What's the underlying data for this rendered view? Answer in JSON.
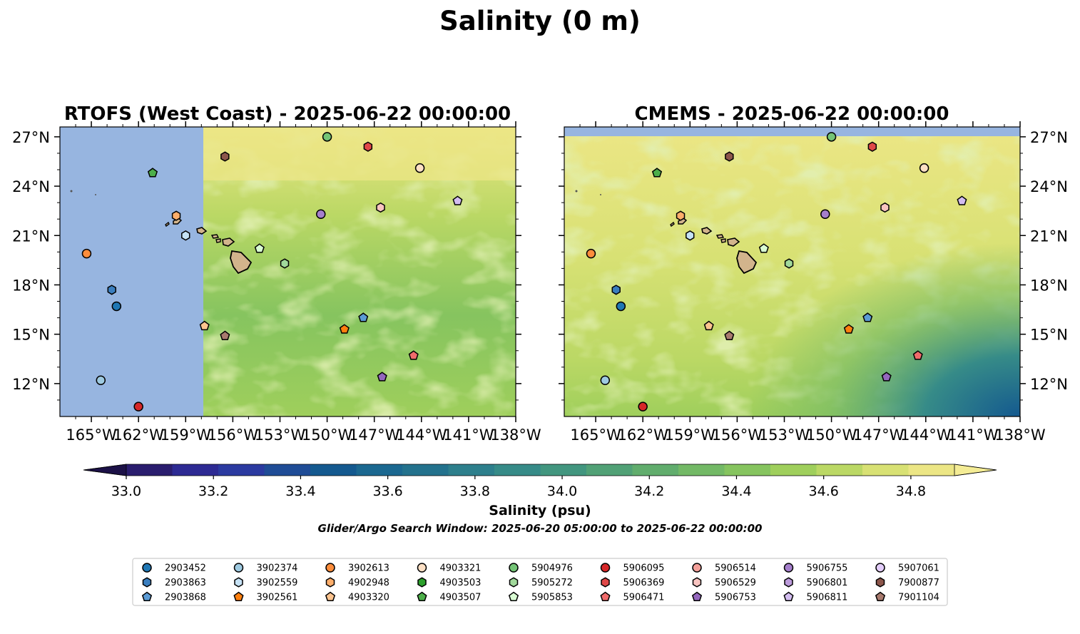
{
  "suptitle": "Salinity (0 m)",
  "colorbar": {
    "label": "Salinity (psu)",
    "ticks": [
      "33.0",
      "33.2",
      "33.4",
      "33.6",
      "33.8",
      "34.0",
      "34.2",
      "34.4",
      "34.6",
      "34.8"
    ],
    "range": [
      33.0,
      34.9
    ],
    "colors": [
      "#2a1d6e",
      "#2d2a93",
      "#2b3aa0",
      "#1f4c96",
      "#14598f",
      "#1b6890",
      "#23728d",
      "#2d7f8c",
      "#368b88",
      "#42967f",
      "#51a176",
      "#61ad6d",
      "#73b966",
      "#86c45f",
      "#9fcf5c",
      "#bbd865",
      "#d8e174",
      "#ece685"
    ]
  },
  "search_window": "Glider/Argo Search Window: 2025-06-20 05:00:00 to 2025-06-22 00:00:00",
  "legend": [
    {
      "id": "2903452",
      "color": "#1f77b4",
      "marker": "circle"
    },
    {
      "id": "2903863",
      "color": "#3a7ebf",
      "marker": "hexagon"
    },
    {
      "id": "2903868",
      "color": "#5b9bd5",
      "marker": "pentagon"
    },
    {
      "id": "3902374",
      "color": "#9ecae1",
      "marker": "circle"
    },
    {
      "id": "3902559",
      "color": "#c6e2f5",
      "marker": "hexagon"
    },
    {
      "id": "3902561",
      "color": "#ff7f0e",
      "marker": "pentagon"
    },
    {
      "id": "3902613",
      "color": "#fd8d3c",
      "marker": "circle"
    },
    {
      "id": "4902948",
      "color": "#fdae6b",
      "marker": "hexagon"
    },
    {
      "id": "4903320",
      "color": "#fdc48f",
      "marker": "pentagon"
    },
    {
      "id": "4903321",
      "color": "#fde0c5",
      "marker": "circle"
    },
    {
      "id": "4903503",
      "color": "#2ca02c",
      "marker": "hexagon"
    },
    {
      "id": "4903507",
      "color": "#4daf4a",
      "marker": "pentagon"
    },
    {
      "id": "5904976",
      "color": "#74c476",
      "marker": "circle"
    },
    {
      "id": "5905272",
      "color": "#a1d99b",
      "marker": "hexagon"
    },
    {
      "id": "5905853",
      "color": "#d9fcd3",
      "marker": "pentagon"
    },
    {
      "id": "5906095",
      "color": "#d62728",
      "marker": "circle"
    },
    {
      "id": "5906369",
      "color": "#e04848",
      "marker": "hexagon"
    },
    {
      "id": "5906471",
      "color": "#f06b6b",
      "marker": "pentagon"
    },
    {
      "id": "5906514",
      "color": "#f4a09a",
      "marker": "circle"
    },
    {
      "id": "5906529",
      "color": "#f8c4c0",
      "marker": "hexagon"
    },
    {
      "id": "5906753",
      "color": "#9467bd",
      "marker": "pentagon"
    },
    {
      "id": "5906755",
      "color": "#a57fcc",
      "marker": "circle"
    },
    {
      "id": "5906801",
      "color": "#bc9bdb",
      "marker": "hexagon"
    },
    {
      "id": "5906811",
      "color": "#d3bdf0",
      "marker": "pentagon"
    },
    {
      "id": "5907061",
      "color": "#e3cdfb",
      "marker": "circle"
    },
    {
      "id": "7900877",
      "color": "#8c564b",
      "marker": "hexagon"
    },
    {
      "id": "7901104",
      "color": "#a87a6e",
      "marker": "pentagon"
    }
  ],
  "chart_data": [
    {
      "type": "scatter",
      "title": "RTOFS (West Coast) - 2025-06-22 00:00:00",
      "xlim": [
        -167,
        -138
      ],
      "ylim": [
        10,
        27.6
      ],
      "x_ticks": [
        "165°W",
        "162°W",
        "159°W",
        "156°W",
        "153°W",
        "150°W",
        "147°W",
        "144°W",
        "141°W",
        "138°W"
      ],
      "y_ticks": [
        "12°N",
        "15°N",
        "18°N",
        "21°N",
        "24°N",
        "27°N"
      ],
      "data_edge_lon": -157.9,
      "points": [
        {
          "id": "3902613",
          "lon": -165.3,
          "lat": 19.9
        },
        {
          "id": "2903863",
          "lon": -163.7,
          "lat": 17.7
        },
        {
          "id": "2903452",
          "lon": -163.4,
          "lat": 16.7
        },
        {
          "id": "3902374",
          "lon": -164.4,
          "lat": 12.2
        },
        {
          "id": "5906095",
          "lon": -162.0,
          "lat": 10.6
        },
        {
          "id": "4903507",
          "lon": -161.1,
          "lat": 24.8
        },
        {
          "id": "4902948",
          "lon": -159.6,
          "lat": 22.2
        },
        {
          "id": "3902559",
          "lon": -159.0,
          "lat": 21.0
        },
        {
          "id": "7900877",
          "lon": -156.5,
          "lat": 25.8
        },
        {
          "id": "4903320",
          "lon": -157.8,
          "lat": 15.5
        },
        {
          "id": "7901104",
          "lon": -156.5,
          "lat": 14.9
        },
        {
          "id": "5905853",
          "lon": -154.3,
          "lat": 20.2
        },
        {
          "id": "5905272",
          "lon": -152.7,
          "lat": 19.3
        },
        {
          "id": "5904976",
          "lon": -150.0,
          "lat": 27.0
        },
        {
          "id": "5906369",
          "lon": -147.4,
          "lat": 26.4
        },
        {
          "id": "5906755",
          "lon": -150.4,
          "lat": 22.3
        },
        {
          "id": "5906529",
          "lon": -146.6,
          "lat": 22.7
        },
        {
          "id": "4903321",
          "lon": -144.1,
          "lat": 25.1
        },
        {
          "id": "5906811",
          "lon": -141.7,
          "lat": 23.1
        },
        {
          "id": "3902561",
          "lon": -148.9,
          "lat": 15.3
        },
        {
          "id": "2903868",
          "lon": -147.7,
          "lat": 16.0
        },
        {
          "id": "5906471",
          "lon": -144.5,
          "lat": 13.7
        },
        {
          "id": "5906753",
          "lon": -146.5,
          "lat": 12.4
        }
      ]
    },
    {
      "type": "scatter",
      "title": "CMEMS - 2025-06-22 00:00:00",
      "xlim": [
        -167,
        -138
      ],
      "ylim": [
        10,
        27.6
      ],
      "x_ticks": [
        "165°W",
        "162°W",
        "159°W",
        "156°W",
        "153°W",
        "150°W",
        "147°W",
        "144°W",
        "141°W",
        "138°W"
      ],
      "y_ticks": [
        "12°N",
        "15°N",
        "18°N",
        "21°N",
        "24°N",
        "27°N"
      ],
      "data_edge_lat": 27.1,
      "points": [
        {
          "id": "3902613",
          "lon": -165.3,
          "lat": 19.9
        },
        {
          "id": "2903863",
          "lon": -163.7,
          "lat": 17.7
        },
        {
          "id": "2903452",
          "lon": -163.4,
          "lat": 16.7
        },
        {
          "id": "3902374",
          "lon": -164.4,
          "lat": 12.2
        },
        {
          "id": "5906095",
          "lon": -162.0,
          "lat": 10.6
        },
        {
          "id": "4903507",
          "lon": -161.1,
          "lat": 24.8
        },
        {
          "id": "4902948",
          "lon": -159.6,
          "lat": 22.2
        },
        {
          "id": "3902559",
          "lon": -159.0,
          "lat": 21.0
        },
        {
          "id": "7900877",
          "lon": -156.5,
          "lat": 25.8
        },
        {
          "id": "4903320",
          "lon": -157.8,
          "lat": 15.5
        },
        {
          "id": "7901104",
          "lon": -156.5,
          "lat": 14.9
        },
        {
          "id": "5905853",
          "lon": -154.3,
          "lat": 20.2
        },
        {
          "id": "5905272",
          "lon": -152.7,
          "lat": 19.3
        },
        {
          "id": "5904976",
          "lon": -150.0,
          "lat": 27.0
        },
        {
          "id": "5906369",
          "lon": -147.4,
          "lat": 26.4
        },
        {
          "id": "5906755",
          "lon": -150.4,
          "lat": 22.3
        },
        {
          "id": "5906529",
          "lon": -146.6,
          "lat": 22.7
        },
        {
          "id": "4903321",
          "lon": -144.1,
          "lat": 25.1
        },
        {
          "id": "5906811",
          "lon": -141.7,
          "lat": 23.1
        },
        {
          "id": "3902561",
          "lon": -148.9,
          "lat": 15.3
        },
        {
          "id": "2903868",
          "lon": -147.7,
          "lat": 16.0
        },
        {
          "id": "5906471",
          "lon": -144.5,
          "lat": 13.7
        },
        {
          "id": "5906753",
          "lon": -146.5,
          "lat": 12.4
        }
      ]
    }
  ]
}
